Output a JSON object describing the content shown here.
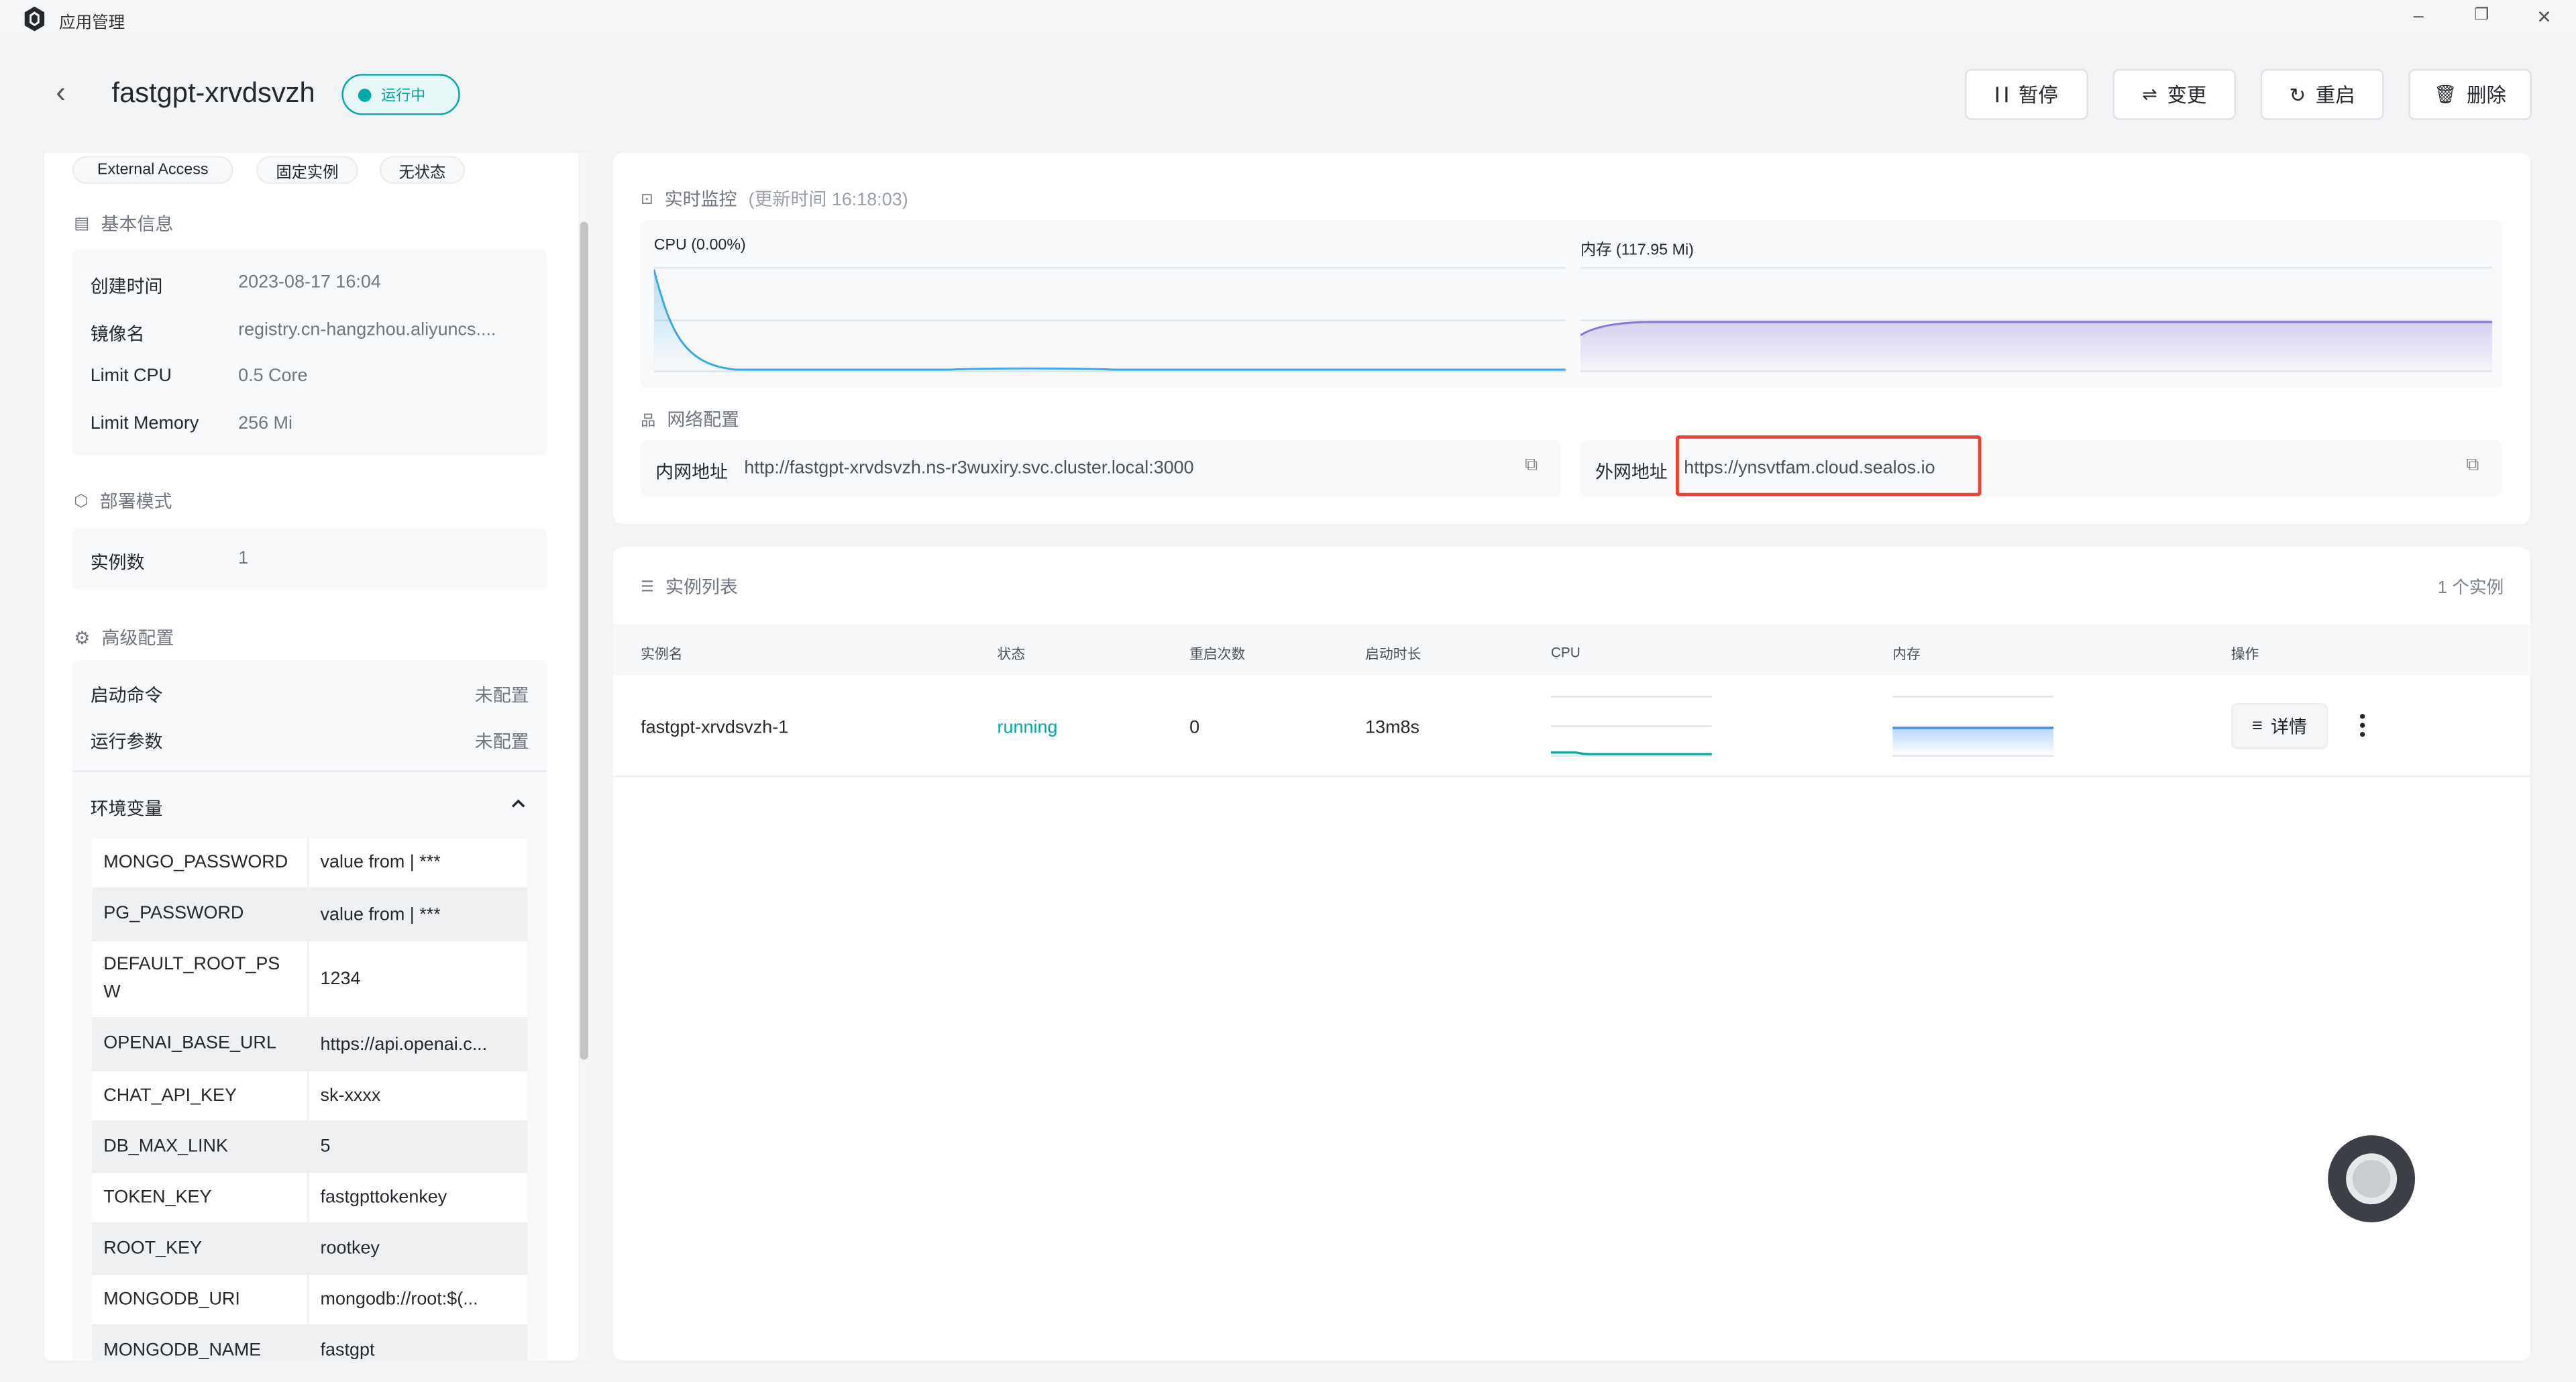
{
  "window": {
    "title": "应用管理",
    "controls": [
      "minimize",
      "restore",
      "close"
    ]
  },
  "header": {
    "app_name": "fastgpt-xrvdsvzh",
    "status": "运行中",
    "status_color": "#00a9a6",
    "actions": [
      {
        "label": "暂停",
        "icon": "pause-icon"
      },
      {
        "label": "变更",
        "icon": "swap-icon"
      },
      {
        "label": "重启",
        "icon": "restart-icon"
      },
      {
        "label": "删除",
        "icon": "trash-icon"
      }
    ]
  },
  "sidebar": {
    "tags": [
      "External Access",
      "固定实例",
      "无状态"
    ],
    "basic": {
      "title": "基本信息",
      "rows": [
        {
          "label": "创建时间",
          "value": "2023-08-17 16:04"
        },
        {
          "label": "镜像名",
          "value": "registry.cn-hangzhou.aliyuncs...."
        },
        {
          "label": "Limit CPU",
          "value": "0.5 Core"
        },
        {
          "label": "Limit Memory",
          "value": "256 Mi"
        }
      ]
    },
    "deploy": {
      "title": "部署模式",
      "rows": [
        {
          "label": "实例数",
          "value": "1"
        }
      ]
    },
    "advanced": {
      "title": "高级配置",
      "rows": [
        {
          "label": "启动命令",
          "value": "未配置"
        },
        {
          "label": "运行参数",
          "value": "未配置"
        }
      ],
      "env_title": "环境变量",
      "env": [
        {
          "key": "MONGO_PASSWORD",
          "value": "value from | ***"
        },
        {
          "key": "PG_PASSWORD",
          "value": "value from | ***"
        },
        {
          "key": "DEFAULT_ROOT_PSW",
          "value": "1234"
        },
        {
          "key": "OPENAI_BASE_URL",
          "value": "https://api.openai.c..."
        },
        {
          "key": "CHAT_API_KEY",
          "value": "sk-xxxx"
        },
        {
          "key": "DB_MAX_LINK",
          "value": "5"
        },
        {
          "key": "TOKEN_KEY",
          "value": "fastgpttokenkey"
        },
        {
          "key": "ROOT_KEY",
          "value": "rootkey"
        },
        {
          "key": "MONGODB_URI",
          "value": "mongodb://root:$(..."
        },
        {
          "key": "MONGODB_NAME",
          "value": "fastgpt"
        }
      ]
    }
  },
  "monitor": {
    "title": "实时监控",
    "updated": "(更新时间  16:18:03)",
    "cpu_label": "CPU  (0.00%)",
    "mem_label": "内存  (117.95 Mi)",
    "cpu_color": "#36a9e8",
    "mem_color": "#8a73d9"
  },
  "network": {
    "title": "网络配置",
    "internal_label": "内网地址",
    "internal_url": "http://fastgpt-xrvdsvzh.ns-r3wuxiry.svc.cluster.local:3000",
    "external_label": "外网地址",
    "external_url": "https://ynsvtfam.cloud.sealos.io",
    "highlight_color": "#e8432e"
  },
  "instances": {
    "title": "实例列表",
    "count": "1 个实例",
    "columns": [
      "实例名",
      "状态",
      "重启次数",
      "启动时长",
      "CPU",
      "内存",
      "操作"
    ],
    "rows": [
      {
        "name": "fastgpt-xrvdsvzh-1",
        "status": "running",
        "restarts": "0",
        "uptime": "13m8s",
        "detail": "详情"
      }
    ]
  }
}
